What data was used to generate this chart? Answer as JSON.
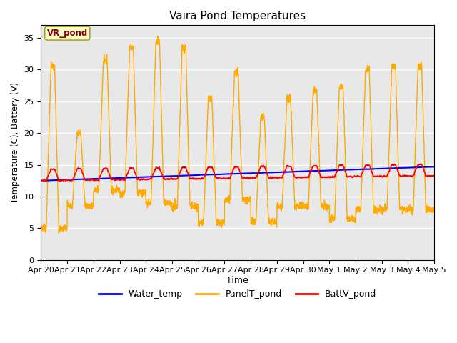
{
  "title": "Vaira Pond Temperatures",
  "xlabel": "Time",
  "ylabel": "Temperature (C), Battery (V)",
  "annotation": "VR_pond",
  "ylim": [
    0,
    37
  ],
  "yticks": [
    0,
    5,
    10,
    15,
    20,
    25,
    30,
    35
  ],
  "background_color": "#e8e8e8",
  "fig_color": "#ffffff",
  "line_water": "#0000ff",
  "line_panel": "#ffaa00",
  "line_batt": "#ff0000",
  "legend_labels": [
    "Water_temp",
    "PanelT_pond",
    "BattV_pond"
  ],
  "xtick_labels": [
    "Apr 20",
    "Apr 21",
    "Apr 22",
    "Apr 23",
    "Apr 24",
    "Apr 25",
    "Apr 26",
    "Apr 27",
    "Apr 28",
    "Apr 29",
    "Apr 30",
    "May 1",
    "May 2",
    "May 3",
    "May 4",
    "May 5"
  ],
  "n_days": 15,
  "pts_per_day": 144
}
